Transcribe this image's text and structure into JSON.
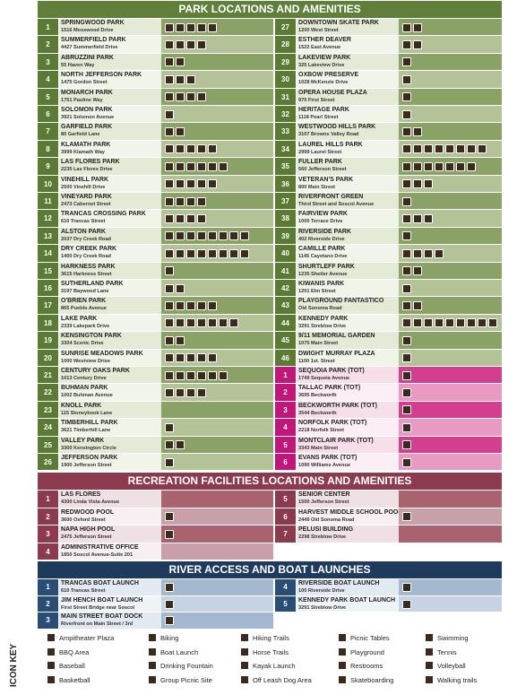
{
  "parks": {
    "title": "PARK LOCATIONS AND AMENITIES",
    "left": [
      {
        "num": 1,
        "name": "SPRINGWOOD PARK",
        "address": "1516 Mosswood Drive"
      },
      {
        "num": 2,
        "name": "SUMMERFIELD PARK",
        "address": "4427 Summerfield Drive"
      },
      {
        "num": 3,
        "name": "ABRUZZINI PARK",
        "address": "55 Haven Way"
      },
      {
        "num": 4,
        "name": "NORTH JEFFERSON PARK",
        "address": "1475 Gordon Street"
      },
      {
        "num": 5,
        "name": "MONARCH PARK",
        "address": "1751 Pauline Way"
      },
      {
        "num": 6,
        "name": "SOLOMON PARK",
        "address": "3921 Solomon Avenue"
      },
      {
        "num": 7,
        "name": "GARFIELD PARK",
        "address": "80 Garfield Lane"
      },
      {
        "num": 8,
        "name": "KLAMATH PARK",
        "address": "3999 Klamath Way"
      },
      {
        "num": 9,
        "name": "LAS FLORES PARK",
        "address": "2235 Las Flores Drive"
      },
      {
        "num": 10,
        "name": "VINEHILL PARK",
        "address": "2500 Vinehill Drive"
      },
      {
        "num": 11,
        "name": "VINEYARD PARK",
        "address": "2473 Cabernet Street"
      },
      {
        "num": 12,
        "name": "TRANCAS CROSSING PARK",
        "address": "610 Trancas Street"
      },
      {
        "num": 13,
        "name": "ALSTON PARK",
        "address": "2037 Dry Creek Road"
      },
      {
        "num": 14,
        "name": "DRY CREEK PARK",
        "address": "1400 Dry Creek Road"
      },
      {
        "num": 15,
        "name": "HARKNESS PARK",
        "address": "3615 Harkness Street"
      },
      {
        "num": 16,
        "name": "SUTHERLAND PARK",
        "address": "3197 Baywood Lane"
      },
      {
        "num": 17,
        "name": "O'BRIEN PARK",
        "address": "865 Pueblo Avenue"
      },
      {
        "num": 18,
        "name": "LAKE PARK",
        "address": "2339 Lakepark Drive"
      },
      {
        "num": 19,
        "name": "KENSINGTON PARK",
        "address": "3304 Scenic Drive"
      },
      {
        "num": 20,
        "name": "SUNRISE MEADOWS PARK",
        "address": "1000 Westview Drive"
      },
      {
        "num": 21,
        "name": "CENTURY OAKS PARK",
        "address": "1013 Century Drive"
      },
      {
        "num": 22,
        "name": "BUHMAN PARK",
        "address": "1002 Buhman Avenue"
      },
      {
        "num": 23,
        "name": "KNOLL PARK",
        "address": "115 Stoneybook Lane"
      },
      {
        "num": 24,
        "name": "TIMBERHILL PARK",
        "address": "3621 Timberhill Lane"
      },
      {
        "num": 25,
        "name": "VALLEY PARK",
        "address": "3300 Kensington Circle"
      },
      {
        "num": 26,
        "name": "JEFFERSON PARK",
        "address": "1900 Jefferson Street"
      }
    ],
    "right": [
      {
        "num": 27,
        "name": "DOWNTOWN SKATE PARK",
        "address": "1200 West Street"
      },
      {
        "num": 28,
        "name": "ESTHER DEAVER",
        "address": "1522 East Avenue"
      },
      {
        "num": 29,
        "name": "LAKEVIEW PARK",
        "address": "325 Lakeview Drive"
      },
      {
        "num": 30,
        "name": "OXBOW PRESERVE",
        "address": "1028 McKenzie Drive"
      },
      {
        "num": 31,
        "name": "OPERA HOUSE PLAZA",
        "address": "970 First Street"
      },
      {
        "num": 32,
        "name": "HERITAGE PARK",
        "address": "1118 Pearl Street"
      },
      {
        "num": 33,
        "name": "WESTWOOD HILLS PARK",
        "address": "3107 Browns Valley Road"
      },
      {
        "num": 34,
        "name": "LAUREL HILLS PARK",
        "address": "2999 Laurel Street"
      },
      {
        "num": 35,
        "name": "FULLER PARK",
        "address": "560 Jefferson Street"
      },
      {
        "num": 36,
        "name": "VETERAN'S PARK",
        "address": "800 Main Street"
      },
      {
        "num": 37,
        "name": "RIVERFRONT GREEN",
        "address": "Third Street and Soscol Avenue"
      },
      {
        "num": 38,
        "name": "FAIRVIEW PARK",
        "address": "1000 Terrace Drive"
      },
      {
        "num": 39,
        "name": "RIVERSIDE PARK",
        "address": "402 Riverside Drive"
      },
      {
        "num": 40,
        "name": "CAMILLE PARK",
        "address": "1145 Cayetano Drive"
      },
      {
        "num": 41,
        "name": "SHURTLEFF PARK",
        "address": "1235 Shetler Avenue"
      },
      {
        "num": 42,
        "name": "KIWANIS PARK",
        "address": "1201 Elm Street"
      },
      {
        "num": 43,
        "name": "PLAYGROUND FANTASTICO",
        "address": "Old Sonoma Road"
      },
      {
        "num": 44,
        "name": "KENNEDY PARK",
        "address": "3291 Streblow Drive"
      },
      {
        "num": 45,
        "name": "9/11 MEMORIAL GARDEN",
        "address": "1075 Main Street"
      },
      {
        "num": 46,
        "name": "DWIGHT MURRAY PLAZA",
        "address": "1100 1st. Street"
      }
    ],
    "tot": [
      {
        "num": 1,
        "name": "SEQUOIA PARK (TOT)",
        "address": "1749 Sequoia Avenue"
      },
      {
        "num": 2,
        "name": "TALLAC PARK (TOT)",
        "address": "3695 Beckworth"
      },
      {
        "num": 3,
        "name": "BECKWORTH PARK (TOT)",
        "address": "3544 Beckworth"
      },
      {
        "num": 4,
        "name": "NORFOLK PARK (TOT)",
        "address": "2218 Norfolk Street"
      },
      {
        "num": 5,
        "name": "MONTCLAIR PARK (TOT)",
        "address": "3343 Main Street"
      },
      {
        "num": 6,
        "name": "EVANS PARK (TOT)",
        "address": "1090 Williams Avenue"
      }
    ]
  },
  "recreation": {
    "title": "RECREATION FACILITIES LOCATIONS AND AMENITIES",
    "left": [
      {
        "num": 1,
        "name": "LAS FLORES",
        "address": "4300 Linda Vista Avenue"
      },
      {
        "num": 2,
        "name": "REDWOOD POOL",
        "address": "3600 Oxford Street"
      },
      {
        "num": 3,
        "name": "NAPA HIGH POOL",
        "address": "2475 Jefferson Street"
      },
      {
        "num": 4,
        "name": "ADMINISTRATIVE OFFICE",
        "address": "1850 Soscol Avenue-Suite 201"
      }
    ],
    "right": [
      {
        "num": 5,
        "name": "SENIOR CENTER",
        "address": "1500 Jefferson Street"
      },
      {
        "num": 6,
        "name": "HARVEST MIDDLE SCHOOL POOL",
        "address": "2449 Old Sonoma Road"
      },
      {
        "num": 7,
        "name": "PELUSI BUILDING",
        "address": "2298 Streblow Drive"
      }
    ]
  },
  "river": {
    "title": "RIVER ACCESS AND BOAT LAUNCHES",
    "left": [
      {
        "num": 1,
        "name": "TRANCAS BOAT LAUNCH",
        "address": "610 Trancas Street"
      },
      {
        "num": 2,
        "name": "JIM HENCH BOAT LAUNCH",
        "address": "First Street Bridge near Soscol"
      },
      {
        "num": 3,
        "name": "MAIN STREET BOAT DOCK",
        "address": "Riverfront on Main Street / 3rd"
      }
    ],
    "right": [
      {
        "num": 4,
        "name": "RIVERSIDE BOAT LAUNCH",
        "address": "100 Riverside Drive"
      },
      {
        "num": 5,
        "name": "KENNEDY PARK BOAT LAUNCH",
        "address": "3291 Streblow Drive"
      }
    ]
  },
  "icon_key": {
    "title": "ICON KEY",
    "items": [
      "Ampitheater Plaza",
      "BBQ Area",
      "Baseball",
      "Basketball",
      "Biking",
      "Boat Launch",
      "Drinking Fountain",
      "Group Picnic Site",
      "Hiking Trails",
      "Horse Trails",
      "Kayak Launch",
      "Off Leash Dog Area",
      "Picnic Tables",
      "Playground",
      "Restrooms",
      "Skateboarding",
      "Swimming",
      "Tennis",
      "Volleyball",
      "Walking trails"
    ]
  }
}
